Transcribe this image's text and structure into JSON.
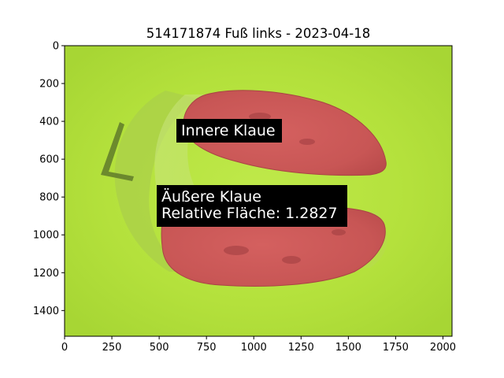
{
  "figure": {
    "title": "514171874 Fuß links - 2023-04-18"
  },
  "axes": {
    "x_ticks": [
      "0",
      "250",
      "500",
      "750",
      "1000",
      "1250",
      "1500",
      "1750",
      "2000"
    ],
    "y_ticks": [
      "0",
      "200",
      "400",
      "600",
      "800",
      "1000",
      "1200",
      "1400"
    ],
    "x_tick_values": [
      0,
      250,
      500,
      750,
      1000,
      1250,
      1500,
      1750,
      2000
    ],
    "y_tick_values": [
      0,
      200,
      400,
      600,
      800,
      1000,
      1200,
      1400
    ],
    "xlim": [
      0,
      2048
    ],
    "ylim": [
      1536,
      0
    ]
  },
  "annotations": {
    "inner_label": "Innere Klaue",
    "outer_label_line1": "Äußere Klaue",
    "outer_label_line2": "Relative Fläche: 1.2827"
  },
  "colors": {
    "background": "#b4e13c",
    "claw_overlay": "#d0585a",
    "label_box": "#000000"
  },
  "image_subject": "hoof-photo-with-claw-segmentation"
}
